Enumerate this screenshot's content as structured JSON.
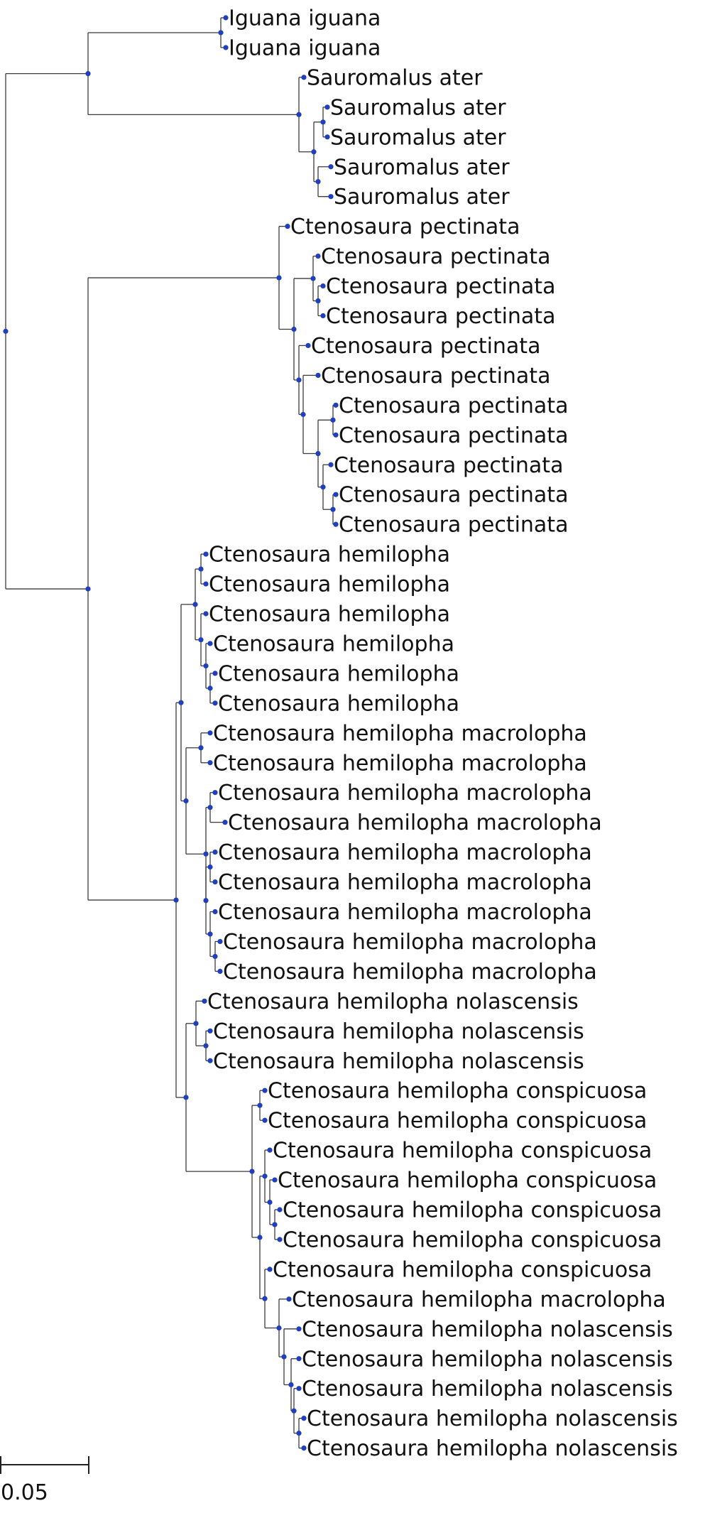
{
  "tips": [
    "Iguana iguana",
    "Iguana iguana",
    "Sauromalus ater",
    "Sauromalus ater",
    "Sauromalus ater",
    "Sauromalus ater",
    "Sauromalus ater",
    "Ctenosaura pectinata",
    "Ctenosaura pectinata",
    "Ctenosaura pectinata",
    "Ctenosaura pectinata",
    "Ctenosaura pectinata",
    "Ctenosaura pectinata",
    "Ctenosaura pectinata",
    "Ctenosaura pectinata",
    "Ctenosaura pectinata",
    "Ctenosaura pectinata",
    "Ctenosaura pectinata",
    "Ctenosaura hemilopha",
    "Ctenosaura hemilopha",
    "Ctenosaura hemilopha",
    "Ctenosaura hemilopha",
    "Ctenosaura hemilopha",
    "Ctenosaura hemilopha",
    "Ctenosaura hemilopha macrolopha",
    "Ctenosaura hemilopha macrolopha",
    "Ctenosaura hemilopha macrolopha",
    "Ctenosaura hemilopha macrolopha",
    "Ctenosaura hemilopha macrolopha",
    "Ctenosaura hemilopha macrolopha",
    "Ctenosaura hemilopha macrolopha",
    "Ctenosaura hemilopha macrolopha",
    "Ctenosaura hemilopha macrolopha",
    "Ctenosaura hemilopha nolascensis",
    "Ctenosaura hemilopha nolascensis",
    "Ctenosaura hemilopha nolascensis",
    "Ctenosaura hemilopha conspicuosa",
    "Ctenosaura hemilopha conspicuosa",
    "Ctenosaura hemilopha conspicuosa",
    "Ctenosaura hemilopha conspicuosa",
    "Ctenosaura hemilopha conspicuosa",
    "Ctenosaura hemilopha conspicuosa",
    "Ctenosaura hemilopha conspicuosa",
    "Ctenosaura hemilopha macrolopha",
    "Ctenosaura hemilopha nolascensis",
    "Ctenosaura hemilopha nolascensis",
    "Ctenosaura hemilopha nolascensis",
    "Ctenosaura hemilopha nolascensis",
    "Ctenosaura hemilopha nolascensis"
  ],
  "scale_bar": {
    "label": "0.05",
    "length": 0.05
  },
  "colors": {
    "branch": "#3a3a3a",
    "node": "#1f3fbf",
    "text": "#111111"
  }
}
